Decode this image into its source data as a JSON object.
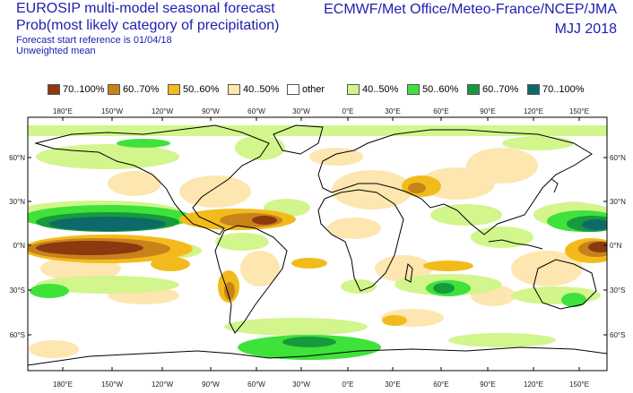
{
  "header": {
    "title_line1": "EUROSIP multi-model seasonal forecast",
    "title_line2": "Prob(most likely category of precipitation)",
    "forecast_ref": "Forecast start reference is 01/04/18",
    "weighting": "Unweighted mean",
    "centres": "ECMWF/Met Office/Meteo-France/NCEP/JMA",
    "season": "MJJ 2018"
  },
  "legend": [
    {
      "label": "70..100%",
      "color": "#8b3a0f"
    },
    {
      "label": "60..70%",
      "color": "#c8821a"
    },
    {
      "label": "50..60%",
      "color": "#f2bb1b"
    },
    {
      "label": "40..50%",
      "color": "#fde6b0"
    },
    {
      "label": "other",
      "color": "#ffffff"
    },
    {
      "label": "40..50%",
      "color": "#d2f58c"
    },
    {
      "label": "50..60%",
      "color": "#3ee23a"
    },
    {
      "label": "60..70%",
      "color": "#169a3c"
    },
    {
      "label": "70..100%",
      "color": "#0d6a6a"
    }
  ],
  "axes": {
    "lon_top": [
      "180°E",
      "150°W",
      "120°W",
      "90°W",
      "60°W",
      "30°W",
      "0°E",
      "30°E",
      "60°E",
      "90°E",
      "120°E",
      "150°E"
    ],
    "lon_bottom": [
      "180°E",
      "150°W",
      "120°W",
      "90°W",
      "60°W",
      "30°W",
      "0°E",
      "30°E",
      "60°E",
      "90°E",
      "120°E",
      "150°E"
    ],
    "lat_left": [
      "60°N",
      "30°N",
      "0°N",
      "30°S",
      "60°S"
    ],
    "lat_right": [
      "60°N",
      "30°N",
      "0°N",
      "30°S",
      "60°S"
    ]
  }
}
